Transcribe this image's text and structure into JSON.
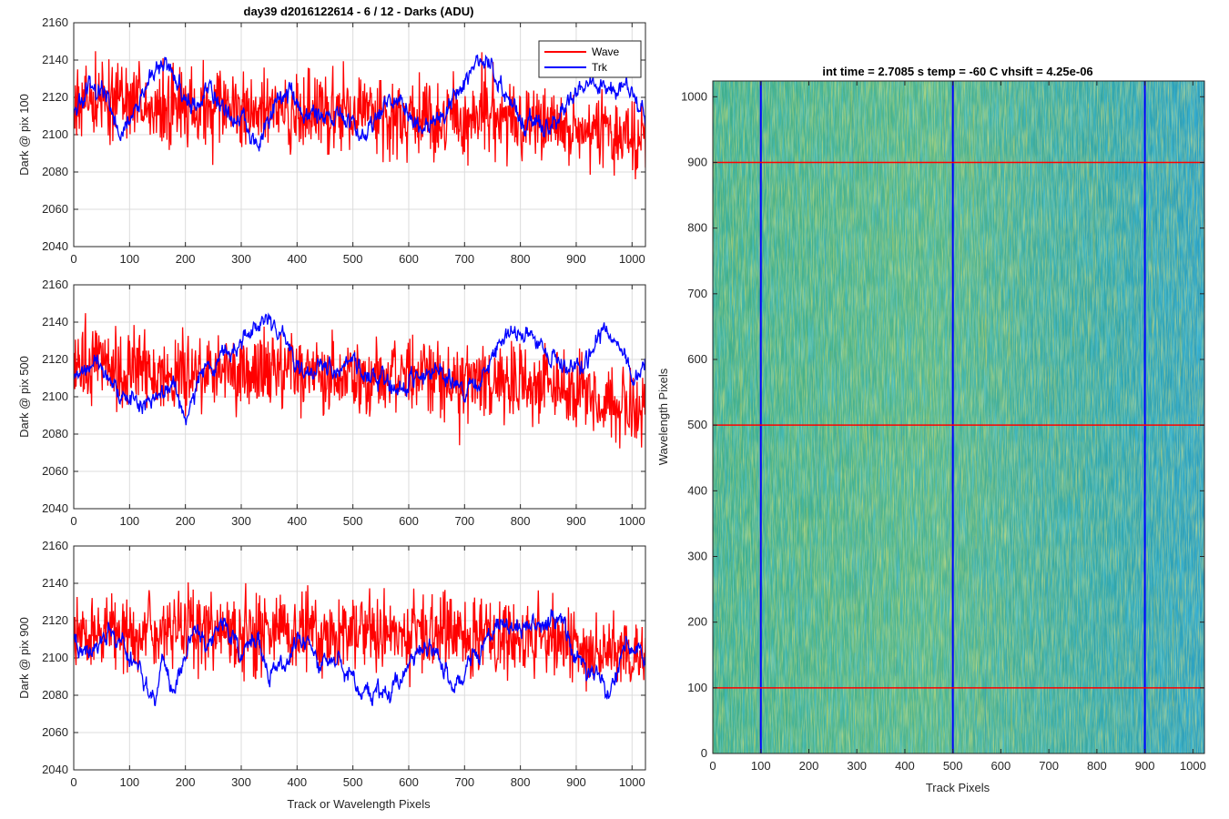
{
  "figure": {
    "suptitle": "day39 d2016122614 - 6 / 12 - Darks (ADU)",
    "colors": {
      "wave": "#ff0000",
      "trk": "#0000ff",
      "grid": "#dcdcdc",
      "axes": "#262626"
    }
  },
  "chart_data": [
    {
      "type": "line",
      "title": "day39 d2016122614 - 6 / 12 - Darks (ADU)",
      "xlabel": "",
      "ylabel": "Dark @ pix 100",
      "xlim": [
        0,
        1024
      ],
      "ylim": [
        2040,
        2160
      ],
      "xticks": [
        0,
        100,
        200,
        300,
        400,
        500,
        600,
        700,
        800,
        900,
        1000
      ],
      "yticks": [
        2040,
        2060,
        2080,
        2100,
        2120,
        2140,
        2160
      ],
      "grid": true,
      "legend": {
        "placement": "top-right",
        "entries": [
          "Wave",
          "Trk"
        ]
      },
      "series": [
        {
          "name": "Wave",
          "color": "#ff0000",
          "x": [
            0,
            50,
            100,
            150,
            200,
            250,
            300,
            350,
            400,
            450,
            500,
            550,
            600,
            650,
            700,
            750,
            800,
            850,
            900,
            950,
            1000,
            1024
          ],
          "y": [
            2115,
            2120,
            2118,
            2115,
            2116,
            2114,
            2112,
            2113,
            2112,
            2110,
            2112,
            2111,
            2110,
            2109,
            2110,
            2112,
            2106,
            2105,
            2102,
            2100,
            2098,
            2095
          ],
          "noise": 11
        },
        {
          "name": "Trk",
          "color": "#0000ff",
          "x": [
            0,
            30,
            60,
            90,
            120,
            150,
            180,
            210,
            240,
            270,
            300,
            330,
            360,
            390,
            420,
            450,
            480,
            510,
            540,
            570,
            600,
            630,
            660,
            690,
            720,
            750,
            780,
            810,
            840,
            870,
            900,
            930,
            960,
            990,
            1024
          ],
          "y": [
            2112,
            2125,
            2118,
            2098,
            2120,
            2138,
            2132,
            2115,
            2124,
            2112,
            2110,
            2094,
            2118,
            2122,
            2108,
            2112,
            2110,
            2100,
            2108,
            2118,
            2112,
            2100,
            2110,
            2120,
            2140,
            2134,
            2118,
            2108,
            2102,
            2110,
            2124,
            2128,
            2122,
            2126,
            2115
          ],
          "noise": 4
        }
      ]
    },
    {
      "type": "line",
      "title": "",
      "xlabel": "",
      "ylabel": "Dark @ pix 500",
      "xlim": [
        0,
        1024
      ],
      "ylim": [
        2040,
        2160
      ],
      "xticks": [
        0,
        100,
        200,
        300,
        400,
        500,
        600,
        700,
        800,
        900,
        1000
      ],
      "yticks": [
        2040,
        2060,
        2080,
        2100,
        2120,
        2140,
        2160
      ],
      "grid": true,
      "series": [
        {
          "name": "Wave",
          "color": "#ff0000",
          "x": [
            0,
            100,
            200,
            300,
            400,
            500,
            600,
            700,
            800,
            900,
            1000,
            1024
          ],
          "y": [
            2118,
            2114,
            2113,
            2112,
            2112,
            2111,
            2110,
            2108,
            2107,
            2102,
            2092,
            2088
          ],
          "noise": 11
        },
        {
          "name": "Trk",
          "color": "#0000ff",
          "x": [
            0,
            30,
            60,
            90,
            120,
            150,
            180,
            200,
            230,
            260,
            290,
            320,
            350,
            380,
            410,
            440,
            470,
            500,
            540,
            580,
            620,
            660,
            700,
            740,
            770,
            800,
            830,
            860,
            890,
            920,
            950,
            980,
            1000,
            1024
          ],
          "y": [
            2108,
            2120,
            2112,
            2098,
            2095,
            2102,
            2108,
            2085,
            2112,
            2120,
            2125,
            2136,
            2141,
            2128,
            2112,
            2115,
            2113,
            2120,
            2110,
            2105,
            2115,
            2112,
            2104,
            2115,
            2130,
            2135,
            2130,
            2122,
            2115,
            2118,
            2135,
            2128,
            2110,
            2118
          ],
          "noise": 4
        }
      ]
    },
    {
      "type": "line",
      "title": "",
      "xlabel": "Track or Wavelength Pixels",
      "ylabel": "Dark @ pix 900",
      "xlim": [
        0,
        1024
      ],
      "ylim": [
        2040,
        2160
      ],
      "xticks": [
        0,
        100,
        200,
        300,
        400,
        500,
        600,
        700,
        800,
        900,
        1000
      ],
      "yticks": [
        2040,
        2060,
        2080,
        2100,
        2120,
        2140,
        2160
      ],
      "grid": true,
      "series": [
        {
          "name": "Wave",
          "color": "#ff0000",
          "x": [
            0,
            100,
            200,
            300,
            400,
            500,
            600,
            700,
            800,
            900,
            1000,
            1024
          ],
          "y": [
            2112,
            2113,
            2114,
            2114,
            2113,
            2114,
            2113,
            2112,
            2111,
            2108,
            2104,
            2098
          ],
          "noise": 11
        },
        {
          "name": "Trk",
          "color": "#0000ff",
          "x": [
            0,
            30,
            60,
            90,
            120,
            140,
            160,
            180,
            210,
            240,
            270,
            300,
            330,
            360,
            400,
            440,
            480,
            520,
            560,
            600,
            640,
            680,
            720,
            760,
            800,
            840,
            870,
            900,
            930,
            960,
            990,
            1024
          ],
          "y": [
            2110,
            2100,
            2115,
            2108,
            2090,
            2078,
            2098,
            2080,
            2110,
            2112,
            2118,
            2102,
            2110,
            2090,
            2108,
            2102,
            2095,
            2082,
            2078,
            2096,
            2106,
            2088,
            2102,
            2120,
            2112,
            2118,
            2124,
            2100,
            2090,
            2082,
            2108,
            2100
          ],
          "noise": 4
        }
      ]
    },
    {
      "type": "heatmap",
      "title": "int time = 2.7085 s    temp = -60 C    vhsift = 4.25e-06",
      "xlabel": "Track Pixels",
      "ylabel": "Wavelength Pixels",
      "xlim": [
        0,
        1024
      ],
      "ylim": [
        0,
        1024
      ],
      "xticks": [
        0,
        100,
        200,
        300,
        400,
        500,
        600,
        700,
        800,
        900,
        1000
      ],
      "yticks": [
        0,
        100,
        200,
        300,
        400,
        500,
        600,
        700,
        800,
        900,
        1000
      ],
      "colormap": "parula",
      "vertical_lines": {
        "color": "#0000ff",
        "x": [
          100,
          500,
          900
        ]
      },
      "horizontal_lines": {
        "color": "#ff0000",
        "y": [
          100,
          500,
          900
        ]
      }
    }
  ]
}
